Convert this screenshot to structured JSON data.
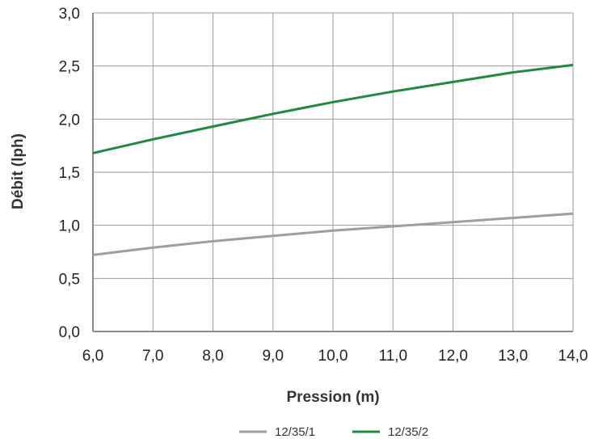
{
  "chart_data": {
    "type": "line",
    "xlabel": "Pression (m)",
    "ylabel": "Débit (lph)",
    "xlim": [
      6.0,
      14.0
    ],
    "ylim": [
      0.0,
      3.0
    ],
    "x_ticks": [
      6.0,
      7.0,
      8.0,
      9.0,
      10.0,
      11.0,
      12.0,
      13.0,
      14.0
    ],
    "y_ticks": [
      0.0,
      0.5,
      1.0,
      1.5,
      2.0,
      2.5,
      3.0
    ],
    "x_tick_labels": [
      "6,0",
      "7,0",
      "8,0",
      "9,0",
      "10,0",
      "11,0",
      "12,0",
      "13,0",
      "14,0"
    ],
    "y_tick_labels": [
      "0,0",
      "0,5",
      "1,0",
      "1,5",
      "2,0",
      "2,5",
      "3,0"
    ],
    "grid": true,
    "legend_position": "bottom-center",
    "series": [
      {
        "name": "12/35/1",
        "color": "#9e9e9e",
        "x": [
          6.0,
          7.0,
          8.0,
          9.0,
          10.0,
          11.0,
          12.0,
          13.0,
          14.0
        ],
        "y": [
          0.72,
          0.79,
          0.85,
          0.9,
          0.95,
          0.99,
          1.03,
          1.07,
          1.11
        ]
      },
      {
        "name": "12/35/2",
        "color": "#1f8a3e",
        "x": [
          6.0,
          7.0,
          8.0,
          9.0,
          10.0,
          11.0,
          12.0,
          13.0,
          14.0
        ],
        "y": [
          1.68,
          1.81,
          1.93,
          2.05,
          2.16,
          2.26,
          2.35,
          2.44,
          2.51
        ]
      }
    ]
  }
}
